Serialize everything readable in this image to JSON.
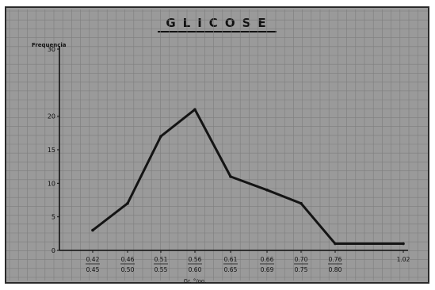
{
  "chart_data": {
    "type": "line",
    "title": "GLICOSE",
    "ylabel": "Frequencia",
    "xlabel": "Gr. °/oo.",
    "ylim": [
      0,
      30
    ],
    "yticks": [
      "0",
      "5",
      "10",
      "15",
      "20",
      "30"
    ],
    "ytick_values": [
      0,
      5,
      10,
      15,
      20,
      30
    ],
    "categories": [
      {
        "top": "0.42",
        "bottom": "0.45"
      },
      {
        "top": "0.46",
        "bottom": "0.50"
      },
      {
        "top": "0.51",
        "bottom": "0.55"
      },
      {
        "top": "0.56",
        "bottom": "0.60"
      },
      {
        "top": "0.61",
        "bottom": "0.65"
      },
      {
        "top": "0.66",
        "bottom": "0.69"
      },
      {
        "top": "0.70",
        "bottom": "0.75"
      },
      {
        "top": "0.76",
        "bottom": "0.80"
      },
      {
        "top": "1.02",
        "bottom": ""
      }
    ],
    "series": [
      {
        "points": [
          {
            "x": "0.42-0.45",
            "y": 3
          },
          {
            "x": "0.46-0.50",
            "y": 7
          },
          {
            "x": "0.51-0.55",
            "y": 17
          },
          {
            "x": "0.56-0.60",
            "y": 21
          },
          {
            "x": "0.61-0.65",
            "y": 11
          },
          {
            "x": "0.66-0.69",
            "y": 9
          },
          {
            "x": "0.70-0.75",
            "y": 7
          },
          {
            "x": "0.76-0.80",
            "y": 1
          },
          {
            "x": "1.02",
            "y": 1
          }
        ]
      }
    ],
    "grid": true,
    "line_color": "#141414",
    "background_color": "#9a9a9a"
  }
}
